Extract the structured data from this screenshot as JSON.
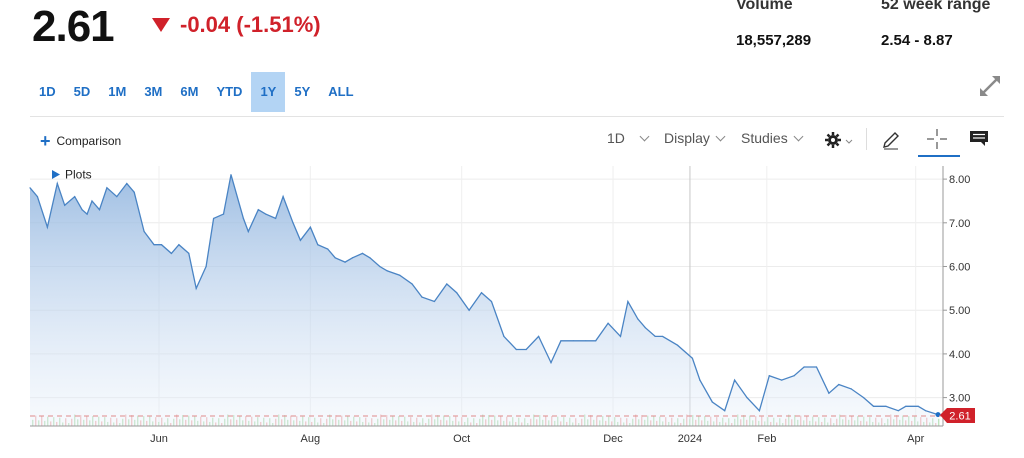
{
  "quote": {
    "price": "2.61",
    "change": "-0.04 (-1.51%)",
    "volume_label": "Volume",
    "volume_value": "18,557,289",
    "range_label": "52 week range",
    "range_value": "2.54 - 8.87"
  },
  "ranges": [
    "1D",
    "5D",
    "1M",
    "3M",
    "6M",
    "YTD",
    "1Y",
    "5Y",
    "ALL"
  ],
  "active_range": "1Y",
  "toolbar": {
    "comparison_label": "Comparison",
    "interval_label": "1D",
    "display_label": "Display",
    "studies_label": "Studies"
  },
  "colors": {
    "accent": "#1f6fc5",
    "negative": "#d0212a",
    "line": "#4a84c4",
    "active_range_bg": "#b3d4f4"
  },
  "icons": [
    "expand-icon",
    "settings-icon",
    "pencil-icon",
    "crosshair-icon",
    "comment-icon"
  ],
  "chart_data": {
    "type": "area",
    "title": "",
    "xlabel": "",
    "ylabel": "",
    "plots_label": "Plots",
    "x_tick_labels": [
      "Jun",
      "Aug",
      "Oct",
      "Dec",
      "2024",
      "Feb",
      "Apr"
    ],
    "x_tick_dates": [
      "2023-06-01",
      "2023-08-01",
      "2023-10-01",
      "2023-12-01",
      "2024-01-01",
      "2024-02-01",
      "2024-04-01"
    ],
    "x_range": [
      "2023-04-10",
      "2024-04-12"
    ],
    "y_ticks": [
      "8.00",
      "7.00",
      "6.00",
      "5.00",
      "4.00",
      "3.00"
    ],
    "ylim": [
      2.35,
      8.3
    ],
    "last_value_label": "2.61",
    "grid": true,
    "series": [
      {
        "x": [
          "2023-04-10",
          "2023-04-13",
          "2023-04-17",
          "2023-04-21",
          "2023-04-24",
          "2023-04-28",
          "2023-05-01",
          "2023-05-03",
          "2023-05-05",
          "2023-05-08",
          "2023-05-11",
          "2023-05-15",
          "2023-05-19",
          "2023-05-22",
          "2023-05-26",
          "2023-05-30",
          "2023-06-02",
          "2023-06-06",
          "2023-06-09",
          "2023-06-13",
          "2023-06-16",
          "2023-06-20",
          "2023-06-23",
          "2023-06-27",
          "2023-06-30",
          "2023-07-05",
          "2023-07-07",
          "2023-07-11",
          "2023-07-14",
          "2023-07-18",
          "2023-07-21",
          "2023-07-25",
          "2023-07-28",
          "2023-08-01",
          "2023-08-04",
          "2023-08-08",
          "2023-08-11",
          "2023-08-15",
          "2023-08-18",
          "2023-08-22",
          "2023-08-25",
          "2023-08-29",
          "2023-09-01",
          "2023-09-06",
          "2023-09-11",
          "2023-09-15",
          "2023-09-20",
          "2023-09-25",
          "2023-09-29",
          "2023-10-04",
          "2023-10-09",
          "2023-10-13",
          "2023-10-18",
          "2023-10-23",
          "2023-10-27",
          "2023-11-01",
          "2023-11-06",
          "2023-11-10",
          "2023-11-15",
          "2023-11-20",
          "2023-11-24",
          "2023-11-29",
          "2023-12-04",
          "2023-12-07",
          "2023-12-11",
          "2023-12-14",
          "2023-12-18",
          "2023-12-21",
          "2023-12-27",
          "2024-01-02",
          "2024-01-05",
          "2024-01-10",
          "2024-01-15",
          "2024-01-19",
          "2024-01-24",
          "2024-01-29",
          "2024-02-02",
          "2024-02-07",
          "2024-02-12",
          "2024-02-16",
          "2024-02-21",
          "2024-02-26",
          "2024-03-01",
          "2024-03-06",
          "2024-03-11",
          "2024-03-15",
          "2024-03-20",
          "2024-03-25",
          "2024-03-28",
          "2024-04-02",
          "2024-04-05",
          "2024-04-10"
        ],
        "values": [
          7.8,
          7.6,
          6.9,
          7.9,
          7.4,
          7.6,
          7.3,
          7.2,
          7.5,
          7.3,
          7.8,
          7.6,
          7.9,
          7.7,
          6.8,
          6.5,
          6.5,
          6.3,
          6.5,
          6.3,
          5.5,
          6.0,
          7.1,
          7.2,
          8.1,
          7.1,
          6.8,
          7.3,
          7.2,
          7.1,
          7.6,
          7.0,
          6.6,
          6.9,
          6.5,
          6.4,
          6.2,
          6.1,
          6.2,
          6.3,
          6.2,
          6.0,
          5.9,
          5.8,
          5.6,
          5.3,
          5.2,
          5.6,
          5.4,
          5.0,
          5.4,
          5.2,
          4.4,
          4.1,
          4.1,
          4.4,
          3.8,
          4.3,
          4.3,
          4.3,
          4.3,
          4.7,
          4.4,
          5.2,
          4.8,
          4.6,
          4.4,
          4.4,
          4.2,
          3.9,
          3.4,
          2.9,
          2.7,
          3.4,
          3.0,
          2.7,
          3.5,
          3.4,
          3.5,
          3.7,
          3.7,
          3.1,
          3.3,
          3.2,
          3.0,
          2.8,
          2.8,
          2.7,
          2.8,
          2.8,
          2.7,
          2.61
        ]
      }
    ]
  }
}
